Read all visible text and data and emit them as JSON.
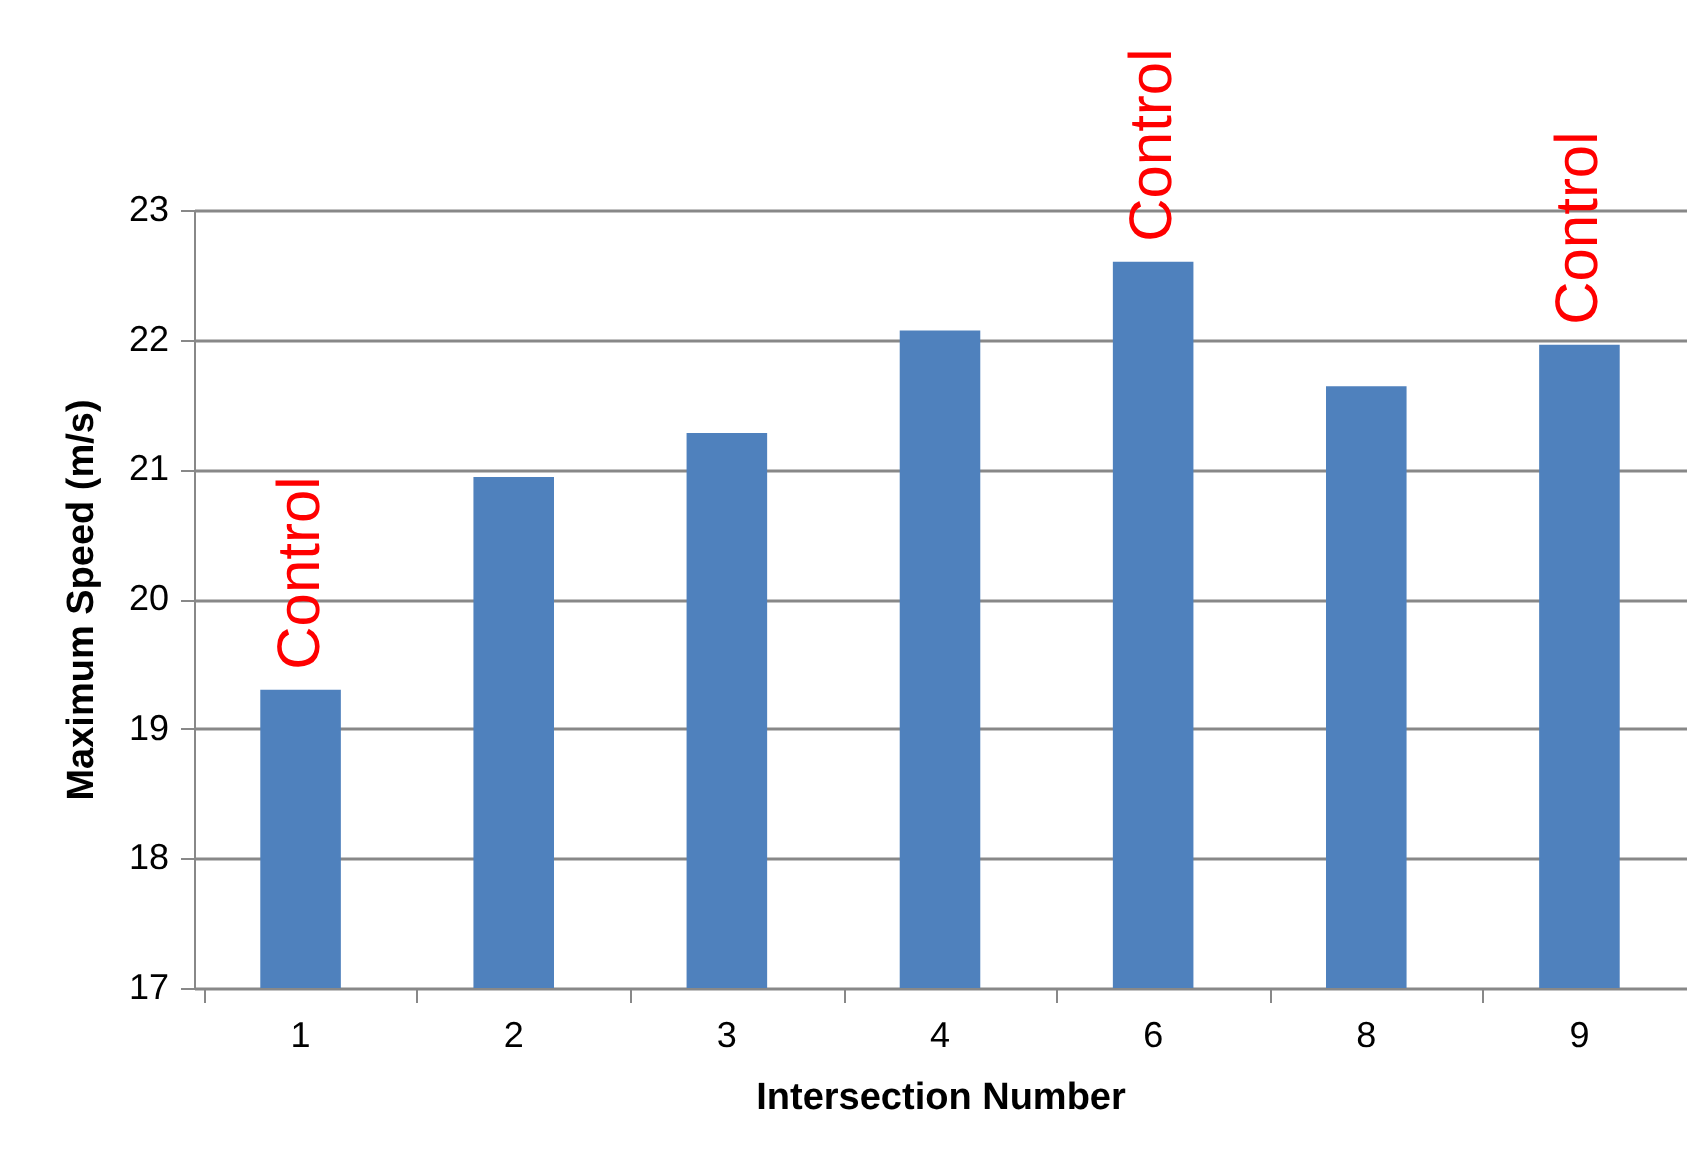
{
  "chart_data": {
    "type": "bar",
    "xlabel": "Intersection Number",
    "ylabel": "Maximum Speed (m/s)",
    "categories": [
      "1",
      "2",
      "3",
      "4",
      "6",
      "8",
      "9"
    ],
    "values": [
      19.3,
      20.94,
      21.28,
      22.07,
      22.6,
      21.64,
      21.96
    ],
    "color": "#4f81bd",
    "ylim": [
      17,
      23
    ],
    "yticks": [
      17,
      18,
      19,
      20,
      21,
      22,
      23
    ],
    "grid": "y",
    "annotations": [
      {
        "text": "Control",
        "x": "1",
        "y": 19.3
      },
      {
        "text": "Control",
        "x": "6",
        "y": 22.6
      },
      {
        "text": "Control",
        "x": "9",
        "y": 21.96
      }
    ]
  }
}
